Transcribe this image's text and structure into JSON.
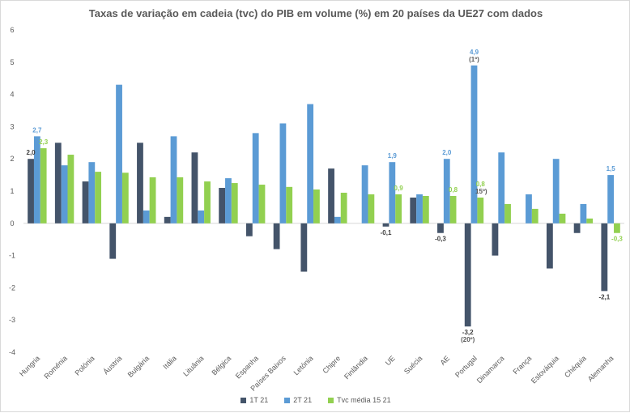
{
  "chart_data": {
    "type": "bar",
    "title": "Taxas de variação em cadeia (tvc) do PIB em volume (%) em 20 países da UE27 com dados",
    "xlabel": "",
    "ylabel": "",
    "ylim": [
      -4,
      6
    ],
    "yticks": [
      "-4",
      "-3",
      "-2",
      "-1",
      "0",
      "1",
      "2",
      "3",
      "4",
      "5",
      "6"
    ],
    "grid": false,
    "legend_position": "bottom",
    "categories": [
      "Hungria",
      "Roménia",
      "Polónia",
      "Áustria",
      "Bulgária",
      "Itália",
      "Lituânia",
      "Bélgica",
      "Espanha",
      "Países Baixos",
      "Letónia",
      "Chipre",
      "Finlândia",
      "UE",
      "Suécia",
      "AE",
      "Portugal",
      "Dinamarca",
      "França",
      "Eslováquia",
      "Chéquia",
      "Alemanha"
    ],
    "series": [
      {
        "name": "1T 21",
        "color": "#44546a",
        "values": [
          2.0,
          2.5,
          1.3,
          -1.1,
          2.5,
          0.2,
          2.2,
          1.1,
          -0.4,
          -0.8,
          -1.5,
          1.7,
          0.0,
          -0.1,
          0.8,
          -0.3,
          -3.2,
          -1.0,
          0.0,
          -1.4,
          -0.3,
          -2.1
        ]
      },
      {
        "name": "2T 21",
        "color": "#5b9bd5",
        "values": [
          2.7,
          1.8,
          1.9,
          4.3,
          0.4,
          2.7,
          0.4,
          1.4,
          2.8,
          3.1,
          3.7,
          0.2,
          1.8,
          1.9,
          0.9,
          2.0,
          4.9,
          2.2,
          0.9,
          2.0,
          0.6,
          1.5
        ]
      },
      {
        "name": "Tvc média 15 21",
        "color": "#92d050",
        "values": [
          2.33,
          2.13,
          1.6,
          1.57,
          1.43,
          1.43,
          1.3,
          1.25,
          1.2,
          1.13,
          1.05,
          0.95,
          0.9,
          0.9,
          0.85,
          0.85,
          0.8,
          0.6,
          0.45,
          0.3,
          0.15,
          -0.3
        ]
      }
    ],
    "annotations": [
      {
        "category": "Hungria",
        "series": "1T 21",
        "text": "2,0",
        "color": "#404040"
      },
      {
        "category": "Hungria",
        "series": "2T 21",
        "text": "2,7",
        "color": "#5b9bd5"
      },
      {
        "category": "Hungria",
        "series": "Tvc média 15 21",
        "text": "2,3",
        "color": "#92d050"
      },
      {
        "category": "UE",
        "series": "1T 21",
        "text": "-0,1",
        "color": "#404040"
      },
      {
        "category": "UE",
        "series": "2T 21",
        "text": "1,9",
        "color": "#5b9bd5"
      },
      {
        "category": "UE",
        "series": "Tvc média 15 21",
        "text": "0,9",
        "color": "#92d050"
      },
      {
        "category": "AE",
        "series": "1T 21",
        "text": "-0,3",
        "color": "#404040"
      },
      {
        "category": "AE",
        "series": "2T 21",
        "text": "2,0",
        "color": "#5b9bd5"
      },
      {
        "category": "AE",
        "series": "Tvc média 15 21",
        "text": "0,8",
        "color": "#92d050"
      },
      {
        "category": "Portugal",
        "series": "1T 21",
        "text": "-3,2",
        "sub": "(20º)",
        "color": "#404040"
      },
      {
        "category": "Portugal",
        "series": "2T 21",
        "text": "4,9",
        "sub": "(1º)",
        "color": "#5b9bd5"
      },
      {
        "category": "Portugal",
        "series": "Tvc média 15 21",
        "text": "0,8",
        "sub": "15º)",
        "color": "#92d050"
      },
      {
        "category": "Alemanha",
        "series": "1T 21",
        "text": "-2,1",
        "color": "#404040"
      },
      {
        "category": "Alemanha",
        "series": "2T 21",
        "text": "1,5",
        "color": "#5b9bd5"
      },
      {
        "category": "Alemanha",
        "series": "Tvc média 15 21",
        "text": "-0,3",
        "color": "#92d050"
      }
    ]
  }
}
